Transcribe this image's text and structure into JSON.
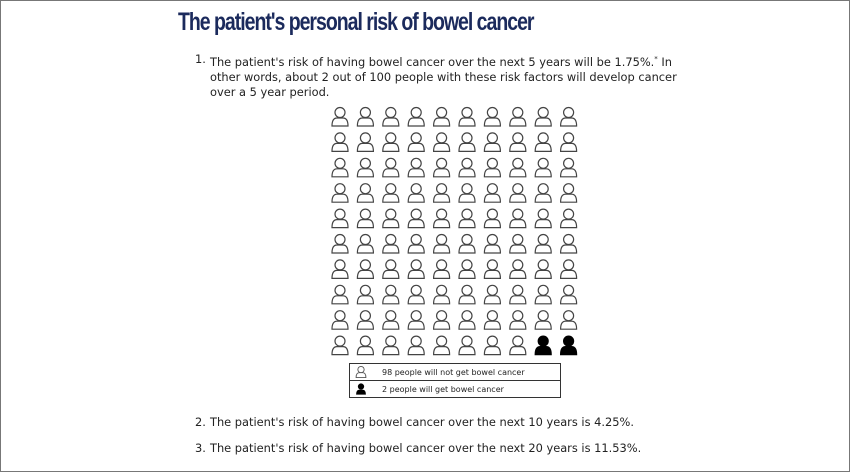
{
  "title": "The patient's personal risk of bowel cancer",
  "items": [
    {
      "num": "1.",
      "text": "The patient's risk of having bowel cancer over the next 5 years will be 1.75%.",
      "sup": "*",
      "text2": " In other words, about 2 out of 100 people with these risk factors will develop cancer over a 5 year period."
    },
    {
      "num": "2.",
      "text": "The patient's risk of having bowel cancer over the next 10 years is 4.25%."
    },
    {
      "num": "3.",
      "text": "The patient's risk of having bowel cancer over the next 20 years is 11.53%."
    }
  ],
  "chart_data": {
    "type": "pictogram",
    "total": 100,
    "columns": 10,
    "rows": 10,
    "series": [
      {
        "name": "98 people will not get bowel cancer",
        "count": 98,
        "style": "outline",
        "color": "#333333"
      },
      {
        "name": "2 people will get bowel cancer",
        "count": 2,
        "style": "filled",
        "color": "#000000"
      }
    ]
  },
  "legend": [
    "98 people will not get bowel cancer",
    "2 people will get bowel cancer"
  ]
}
